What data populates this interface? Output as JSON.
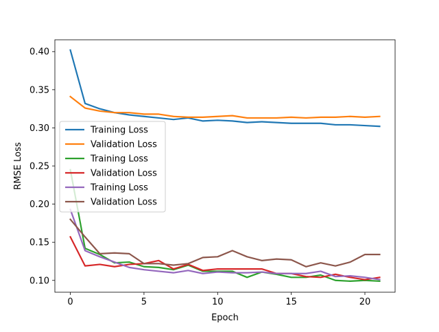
{
  "chart_data": {
    "type": "line",
    "title": "",
    "xlabel": "Epoch",
    "ylabel": "RMSE Loss",
    "xlim": [
      -1.05,
      22.05
    ],
    "ylim": [
      0.0845,
      0.4155
    ],
    "xticks": [
      0,
      5,
      10,
      15,
      20
    ],
    "xtick_labels": [
      "0",
      "5",
      "10",
      "15",
      "20"
    ],
    "yticks": [
      0.1,
      0.15,
      0.2,
      0.25,
      0.3,
      0.35,
      0.4
    ],
    "ytick_labels": [
      "0.10",
      "0.15",
      "0.20",
      "0.25",
      "0.30",
      "0.35",
      "0.40"
    ],
    "grid": false,
    "legend_position": "center-left",
    "x": [
      0,
      1,
      2,
      3,
      4,
      5,
      6,
      7,
      8,
      9,
      10,
      11,
      12,
      13,
      14,
      15,
      16,
      17,
      18,
      19,
      20,
      21
    ],
    "series": [
      {
        "name": "Training Loss",
        "color": "#1f77b4",
        "values": [
          0.402,
          0.332,
          0.325,
          0.32,
          0.317,
          0.315,
          0.313,
          0.311,
          0.313,
          0.309,
          0.31,
          0.309,
          0.307,
          0.308,
          0.307,
          0.306,
          0.306,
          0.306,
          0.304,
          0.304,
          0.303,
          0.302
        ]
      },
      {
        "name": "Validation Loss",
        "color": "#ff7f0e",
        "values": [
          0.341,
          0.326,
          0.322,
          0.32,
          0.32,
          0.318,
          0.318,
          0.315,
          0.314,
          0.314,
          0.315,
          0.316,
          0.313,
          0.313,
          0.313,
          0.314,
          0.313,
          0.314,
          0.314,
          0.315,
          0.314,
          0.315
        ]
      },
      {
        "name": "Training Loss",
        "color": "#2ca02c",
        "values": [
          0.245,
          0.142,
          0.134,
          0.123,
          0.124,
          0.118,
          0.117,
          0.114,
          0.12,
          0.112,
          0.112,
          0.112,
          0.104,
          0.111,
          0.108,
          0.104,
          0.104,
          0.107,
          0.1,
          0.099,
          0.1,
          0.099
        ]
      },
      {
        "name": "Validation Loss",
        "color": "#d62728",
        "values": [
          0.157,
          0.119,
          0.121,
          0.118,
          0.121,
          0.122,
          0.126,
          0.115,
          0.121,
          0.113,
          0.115,
          0.115,
          0.115,
          0.115,
          0.109,
          0.109,
          0.105,
          0.104,
          0.108,
          0.104,
          0.101,
          0.104
        ]
      },
      {
        "name": "Training Loss",
        "color": "#9467bd",
        "values": [
          0.193,
          0.139,
          0.131,
          0.124,
          0.117,
          0.114,
          0.112,
          0.11,
          0.113,
          0.109,
          0.111,
          0.11,
          0.11,
          0.111,
          0.109,
          0.109,
          0.109,
          0.112,
          0.105,
          0.106,
          0.104,
          0.101
        ]
      },
      {
        "name": "Validation Loss",
        "color": "#8c564b",
        "values": [
          0.18,
          0.157,
          0.135,
          0.136,
          0.135,
          0.122,
          0.122,
          0.12,
          0.122,
          0.13,
          0.131,
          0.139,
          0.131,
          0.126,
          0.128,
          0.127,
          0.118,
          0.123,
          0.119,
          0.124,
          0.134,
          0.134
        ]
      }
    ]
  }
}
